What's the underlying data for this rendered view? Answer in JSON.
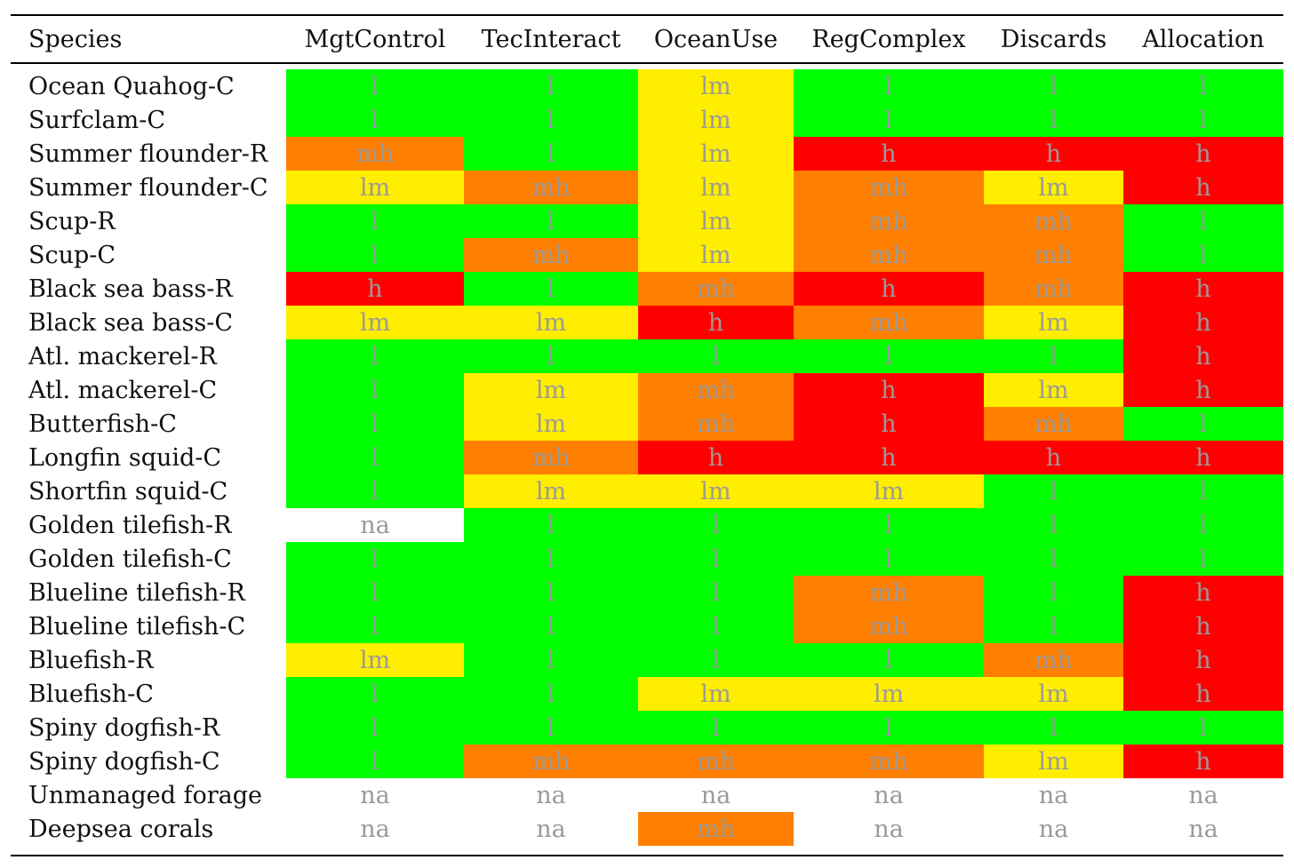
{
  "columns": [
    "Species",
    "MgtControl",
    "TecInteract",
    "OceanUse",
    "RegComplex",
    "Discards",
    "Allocation"
  ],
  "rating_colors": {
    "l": "#00ff00",
    "lm": "#ffee00",
    "mh": "#ff7f00",
    "h": "#ff0000",
    "na": "#ffffff"
  },
  "rows": [
    {
      "species": "Ocean Quahog-C",
      "values": [
        "l",
        "l",
        "lm",
        "l",
        "l",
        "l"
      ]
    },
    {
      "species": "Surfclam-C",
      "values": [
        "l",
        "l",
        "lm",
        "l",
        "l",
        "l"
      ]
    },
    {
      "species": "Summer flounder-R",
      "values": [
        "mh",
        "l",
        "lm",
        "h",
        "h",
        "h"
      ]
    },
    {
      "species": "Summer flounder-C",
      "values": [
        "lm",
        "mh",
        "lm",
        "mh",
        "lm",
        "h"
      ]
    },
    {
      "species": "Scup-R",
      "values": [
        "l",
        "l",
        "lm",
        "mh",
        "mh",
        "l"
      ]
    },
    {
      "species": "Scup-C",
      "values": [
        "l",
        "mh",
        "lm",
        "mh",
        "mh",
        "l"
      ]
    },
    {
      "species": "Black sea bass-R",
      "values": [
        "h",
        "l",
        "mh",
        "h",
        "mh",
        "h"
      ]
    },
    {
      "species": "Black sea bass-C",
      "values": [
        "lm",
        "lm",
        "h",
        "mh",
        "lm",
        "h"
      ]
    },
    {
      "species": "Atl. mackerel-R",
      "values": [
        "l",
        "l",
        "l",
        "l",
        "l",
        "h"
      ]
    },
    {
      "species": "Atl. mackerel-C",
      "values": [
        "l",
        "lm",
        "mh",
        "h",
        "lm",
        "h"
      ]
    },
    {
      "species": "Butterfish-C",
      "values": [
        "l",
        "lm",
        "mh",
        "h",
        "mh",
        "l"
      ]
    },
    {
      "species": "Longfin squid-C",
      "values": [
        "l",
        "mh",
        "h",
        "h",
        "h",
        "h"
      ]
    },
    {
      "species": "Shortfin squid-C",
      "values": [
        "l",
        "lm",
        "lm",
        "lm",
        "l",
        "l"
      ]
    },
    {
      "species": "Golden tilefish-R",
      "values": [
        "na",
        "l",
        "l",
        "l",
        "l",
        "l"
      ]
    },
    {
      "species": "Golden tilefish-C",
      "values": [
        "l",
        "l",
        "l",
        "l",
        "l",
        "l"
      ]
    },
    {
      "species": "Blueline tilefish-R",
      "values": [
        "l",
        "l",
        "l",
        "mh",
        "l",
        "h"
      ]
    },
    {
      "species": "Blueline tilefish-C",
      "values": [
        "l",
        "l",
        "l",
        "mh",
        "l",
        "h"
      ]
    },
    {
      "species": "Bluefish-R",
      "values": [
        "lm",
        "l",
        "l",
        "l",
        "mh",
        "h"
      ]
    },
    {
      "species": "Bluefish-C",
      "values": [
        "l",
        "l",
        "lm",
        "lm",
        "lm",
        "h"
      ]
    },
    {
      "species": "Spiny dogfish-R",
      "values": [
        "l",
        "l",
        "l",
        "l",
        "l",
        "l"
      ]
    },
    {
      "species": "Spiny dogfish-C",
      "values": [
        "l",
        "mh",
        "mh",
        "mh",
        "lm",
        "h"
      ]
    },
    {
      "species": "Unmanaged forage",
      "values": [
        "na",
        "na",
        "na",
        "na",
        "na",
        "na"
      ]
    },
    {
      "species": "Deepsea corals",
      "values": [
        "na",
        "na",
        "mh",
        "na",
        "na",
        "na"
      ]
    }
  ]
}
